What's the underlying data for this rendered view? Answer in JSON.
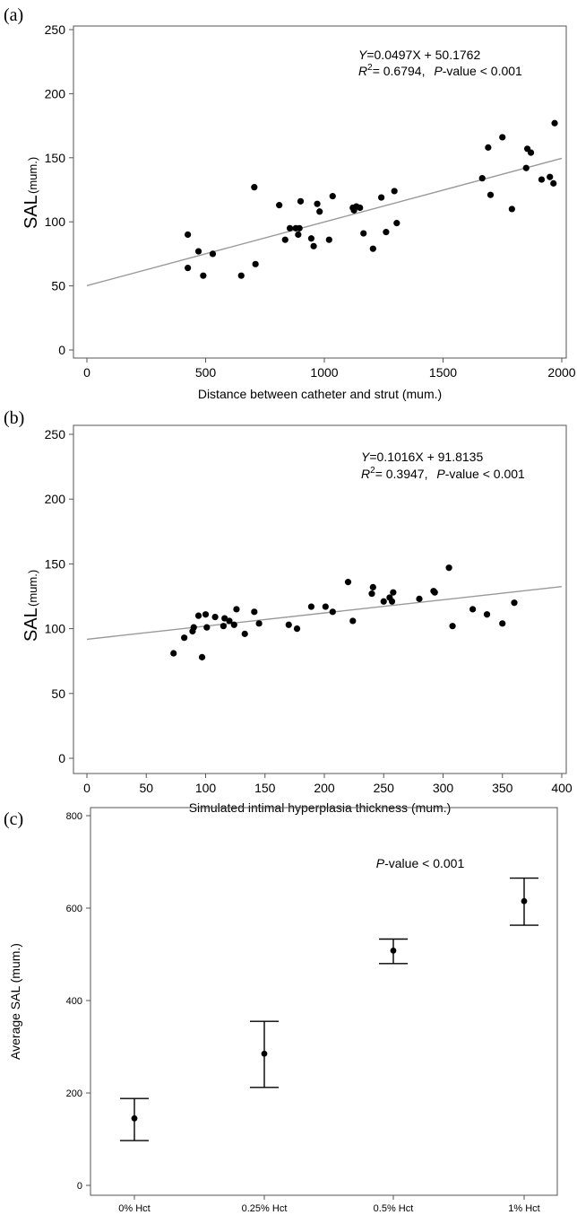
{
  "chart_data": [
    {
      "panel": "(a)",
      "type": "scatter",
      "ylabel": "SAL",
      "ylabel_unit": "(mum.)",
      "xlabel": "Distance between catheter and strut (mum.)",
      "xlim": [
        0,
        2000
      ],
      "ylim": [
        0,
        250
      ],
      "xticks": [
        0,
        500,
        1000,
        1500,
        2000
      ],
      "yticks": [
        0,
        50,
        100,
        150,
        200,
        250
      ],
      "annotation": {
        "equation_var": "Y",
        "equation_rest": "=0.0497X + 50.1762",
        "r2_var": "R",
        "r2_sup": "2",
        "r2_rest": "= 0.6794,",
        "p_var": "P",
        "p_rest": "-value < 0.001"
      },
      "fit": {
        "slope": 0.0497,
        "intercept": 50.1762
      },
      "points": [
        [
          425,
          90
        ],
        [
          425,
          64
        ],
        [
          470,
          77
        ],
        [
          490,
          58
        ],
        [
          530,
          75
        ],
        [
          650,
          58
        ],
        [
          705,
          127
        ],
        [
          710,
          67
        ],
        [
          810,
          113
        ],
        [
          835,
          86
        ],
        [
          855,
          95
        ],
        [
          880,
          95
        ],
        [
          890,
          90
        ],
        [
          895,
          95
        ],
        [
          900,
          116
        ],
        [
          945,
          87
        ],
        [
          955,
          81
        ],
        [
          970,
          114
        ],
        [
          980,
          108
        ],
        [
          1020,
          86
        ],
        [
          1035,
          120
        ],
        [
          1120,
          111
        ],
        [
          1125,
          109
        ],
        [
          1135,
          112
        ],
        [
          1150,
          111
        ],
        [
          1165,
          91
        ],
        [
          1205,
          79
        ],
        [
          1240,
          119
        ],
        [
          1260,
          92
        ],
        [
          1295,
          124
        ],
        [
          1305,
          99
        ],
        [
          1665,
          134
        ],
        [
          1690,
          158
        ],
        [
          1700,
          121
        ],
        [
          1750,
          166
        ],
        [
          1790,
          110
        ],
        [
          1850,
          142
        ],
        [
          1855,
          157
        ],
        [
          1870,
          154
        ],
        [
          1915,
          133
        ],
        [
          1950,
          135
        ],
        [
          1965,
          130
        ],
        [
          1970,
          177
        ]
      ]
    },
    {
      "panel": "(b)",
      "type": "scatter",
      "ylabel": "SAL",
      "ylabel_unit": "(mum.)",
      "xlabel": "Simulated intimal hyperplasia thickness (mum.)",
      "xlim": [
        0,
        400
      ],
      "ylim": [
        0,
        250
      ],
      "xticks": [
        0,
        50,
        100,
        150,
        200,
        250,
        300,
        350,
        400
      ],
      "yticks": [
        0,
        50,
        100,
        150,
        200,
        250
      ],
      "annotation": {
        "equation_var": "Y",
        "equation_rest": "=0.1016X + 91.8135",
        "r2_var": "R",
        "r2_sup": "2",
        "r2_rest": "= 0.3947,",
        "p_var": "P",
        "p_rest": "-value < 0.001"
      },
      "fit": {
        "slope": 0.1016,
        "intercept": 91.8135
      },
      "points": [
        [
          73,
          81
        ],
        [
          82,
          93
        ],
        [
          89,
          98
        ],
        [
          90,
          101
        ],
        [
          94,
          110
        ],
        [
          97,
          78
        ],
        [
          100,
          111
        ],
        [
          101,
          101
        ],
        [
          108,
          109
        ],
        [
          115,
          102
        ],
        [
          116,
          108
        ],
        [
          120,
          106
        ],
        [
          124,
          103
        ],
        [
          126,
          115
        ],
        [
          133,
          96
        ],
        [
          141,
          113
        ],
        [
          145,
          104
        ],
        [
          170,
          103
        ],
        [
          177,
          100
        ],
        [
          189,
          117
        ],
        [
          201,
          117
        ],
        [
          207,
          113
        ],
        [
          220,
          136
        ],
        [
          224,
          106
        ],
        [
          240,
          127
        ],
        [
          241,
          132
        ],
        [
          250,
          121
        ],
        [
          255,
          124
        ],
        [
          257,
          121
        ],
        [
          258,
          128
        ],
        [
          280,
          123
        ],
        [
          292,
          129
        ],
        [
          293,
          128
        ],
        [
          305,
          147
        ],
        [
          308,
          102
        ],
        [
          325,
          115
        ],
        [
          337,
          111
        ],
        [
          350,
          104
        ],
        [
          360,
          120
        ]
      ]
    },
    {
      "panel": "(c)",
      "type": "scatter",
      "subtype": "errorbar",
      "ylabel": "Average SAL (mum.)",
      "xlabel": "",
      "ylim": [
        0,
        800
      ],
      "yticks": [
        0,
        200,
        400,
        600,
        800
      ],
      "categories": [
        "0% Hct",
        "0.25% Hct",
        "0.5% Hct",
        "1% Hct"
      ],
      "means": [
        145,
        285,
        508,
        615
      ],
      "lower": [
        97,
        212,
        480,
        563
      ],
      "upper": [
        188,
        355,
        533,
        665
      ],
      "annotation": {
        "p_var": "P",
        "p_rest": "-value < 0.001"
      }
    }
  ]
}
